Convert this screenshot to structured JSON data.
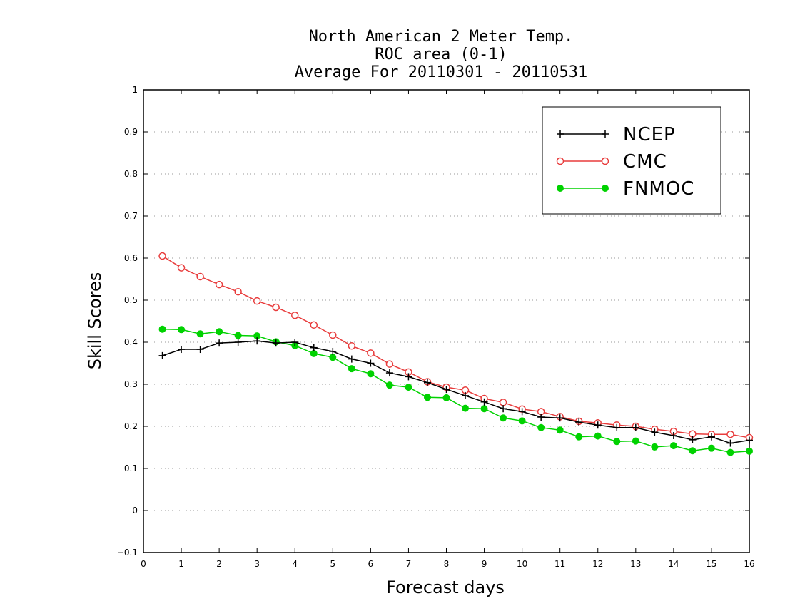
{
  "chart_data": {
    "type": "line",
    "title_lines": [
      "North American 2 Meter Temp.",
      "ROC area (0-1)",
      "Average For 20110301 - 20110531"
    ],
    "xlabel": "Forecast days",
    "ylabel": "Skill Scores",
    "xlim": [
      0,
      16
    ],
    "ylim": [
      -0.1,
      1
    ],
    "x_ticks": [
      "0",
      "1",
      "2",
      "3",
      "4",
      "5",
      "6",
      "7",
      "8",
      "9",
      "10",
      "11",
      "12",
      "13",
      "14",
      "15",
      "16"
    ],
    "y_ticks": [
      "−0.1",
      "0",
      "0.1",
      "0.2",
      "0.3",
      "0.4",
      "0.5",
      "0.6",
      "0.7",
      "0.8",
      "0.9",
      "1"
    ],
    "grid": "horizontal dotted",
    "legend_position": "top-right",
    "x": [
      0.5,
      1,
      1.5,
      2,
      2.5,
      3,
      3.5,
      4,
      4.5,
      5,
      5.5,
      6,
      6.5,
      7,
      7.5,
      8,
      8.5,
      9,
      9.5,
      10,
      10.5,
      11,
      11.5,
      12,
      12.5,
      13,
      13.5,
      14,
      14.5,
      15,
      15.5,
      16
    ],
    "series": [
      {
        "name": "NCEP",
        "color": "#000000",
        "marker": "plus",
        "values": [
          0.368,
          0.383,
          0.383,
          0.398,
          0.4,
          0.403,
          0.398,
          0.4,
          0.387,
          0.378,
          0.36,
          0.35,
          0.327,
          0.318,
          0.304,
          0.288,
          0.273,
          0.258,
          0.242,
          0.235,
          0.222,
          0.22,
          0.21,
          0.203,
          0.197,
          0.197,
          0.186,
          0.178,
          0.168,
          0.175,
          0.16,
          0.167
        ]
      },
      {
        "name": "CMC",
        "color": "#e83c3c",
        "marker": "open-circle",
        "values": [
          0.605,
          0.577,
          0.556,
          0.537,
          0.52,
          0.498,
          0.483,
          0.464,
          0.441,
          0.417,
          0.391,
          0.374,
          0.348,
          0.329,
          0.306,
          0.293,
          0.286,
          0.266,
          0.257,
          0.241,
          0.235,
          0.223,
          0.212,
          0.208,
          0.203,
          0.2,
          0.193,
          0.188,
          0.182,
          0.181,
          0.181,
          0.173
        ]
      },
      {
        "name": "FNMOC",
        "color": "#00d200",
        "marker": "filled-circle",
        "values": [
          0.431,
          0.43,
          0.42,
          0.425,
          0.416,
          0.415,
          0.401,
          0.392,
          0.373,
          0.364,
          0.337,
          0.325,
          0.298,
          0.293,
          0.269,
          0.268,
          0.243,
          0.242,
          0.22,
          0.213,
          0.197,
          0.191,
          0.175,
          0.177,
          0.164,
          0.165,
          0.151,
          0.154,
          0.142,
          0.148,
          0.138,
          0.141
        ]
      }
    ]
  }
}
